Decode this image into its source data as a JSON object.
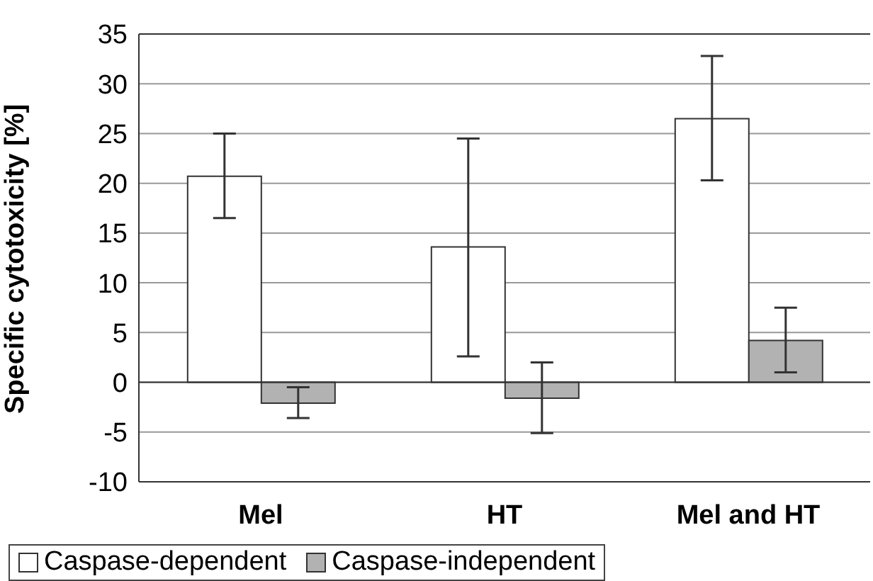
{
  "chart_data": {
    "type": "bar",
    "ylabel": "Specific cytotoxicity [%]",
    "categories": [
      "Mel",
      "HT",
      "Mel and HT"
    ],
    "series": [
      {
        "name": "Caspase-dependent",
        "color": "#ffffff",
        "values": [
          20.7,
          13.6,
          26.5
        ],
        "errors": [
          [
            16.5,
            25.0
          ],
          [
            2.6,
            24.5
          ],
          [
            20.3,
            32.8
          ]
        ]
      },
      {
        "name": "Caspase-independent",
        "color": "#b2b2b2",
        "values": [
          -2.1,
          -1.6,
          4.2
        ],
        "errors": [
          [
            -3.6,
            -0.5
          ],
          [
            -5.1,
            2.0
          ],
          [
            1.0,
            7.5
          ]
        ]
      }
    ],
    "ylim": [
      -10,
      35
    ],
    "yticks": [
      -10,
      -5,
      0,
      5,
      10,
      15,
      20,
      25,
      30,
      35
    ],
    "grid": "y",
    "legend": "bottom"
  }
}
